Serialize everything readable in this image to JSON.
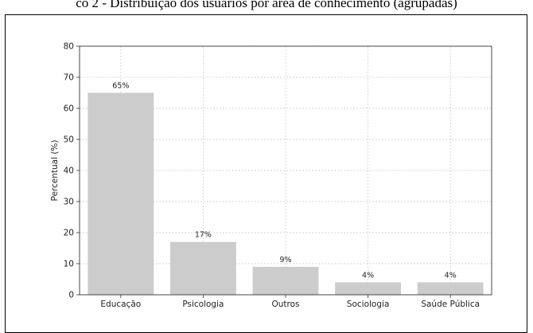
{
  "caption": "co 2 - Distribuição dos usuários por área de conhecimento (agrupadas)",
  "chart_data": {
    "type": "bar",
    "categories": [
      "Educação",
      "Psicologia",
      "Outros",
      "Sociologia",
      "Saúde Pública"
    ],
    "values": [
      65,
      17,
      9,
      4,
      4
    ],
    "data_labels": [
      "65%",
      "17%",
      "9%",
      "4%",
      "4%"
    ],
    "ylabel": "Percentual (%)",
    "ylim": [
      0,
      80
    ],
    "yticks": [
      0,
      10,
      20,
      30,
      40,
      50,
      60,
      70,
      80
    ],
    "grid": true,
    "bar_color": "#cccccc",
    "grid_color": "#c8c8c8"
  }
}
